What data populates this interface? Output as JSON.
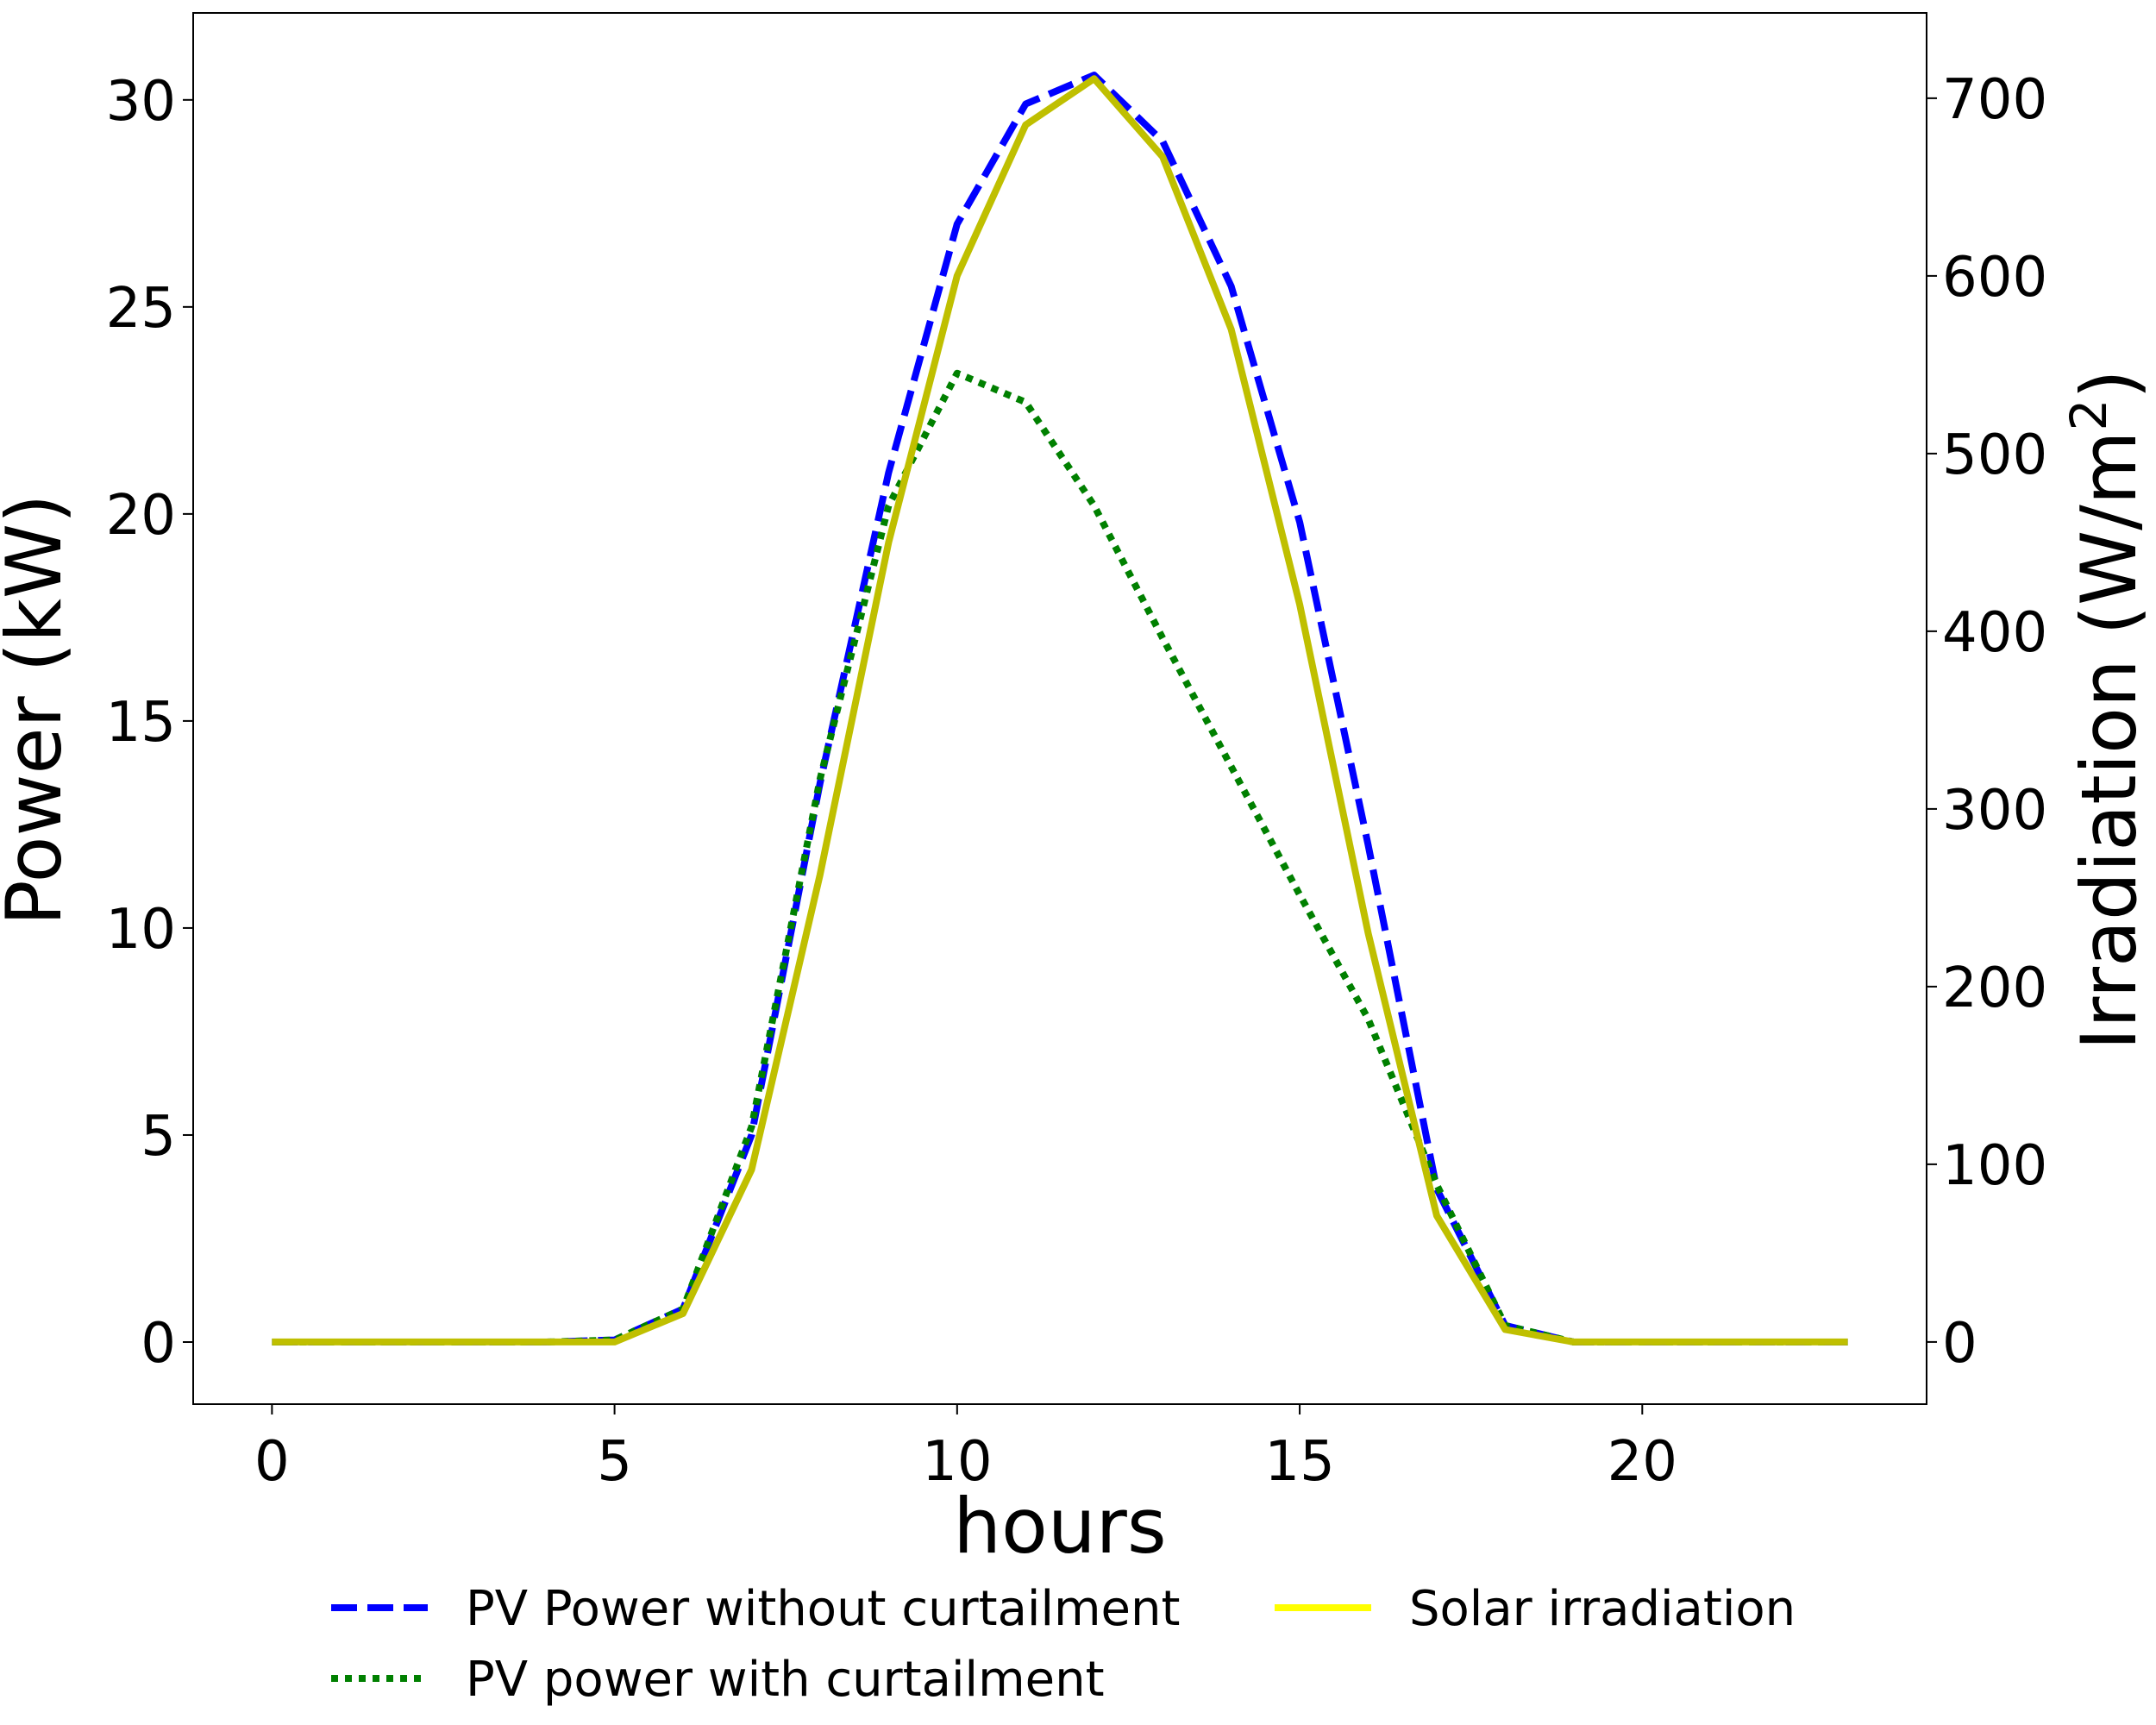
{
  "chart_data": {
    "type": "line",
    "xlabel": "hours",
    "ylabel": "Power (kW)",
    "y2label_main": "Irradiation (W/m",
    "y2label_sup": "2",
    "y2label_close": ")",
    "xlim": [
      -1.15,
      24.15
    ],
    "ylim": [
      -1.5,
      32.1
    ],
    "y2lim": [
      -35,
      748
    ],
    "xticks": [
      0,
      5,
      10,
      15,
      20
    ],
    "yticks": [
      0,
      5,
      10,
      15,
      20,
      25,
      30
    ],
    "y2ticks": [
      0,
      100,
      200,
      300,
      400,
      500,
      600,
      700
    ],
    "grid": false,
    "legend_position": "bottom (below the x-axis, two columns)",
    "x": [
      0,
      1,
      2,
      3,
      4,
      5,
      6,
      7,
      8,
      9,
      10,
      11,
      12,
      13,
      14,
      15,
      16,
      17,
      18,
      19,
      20,
      21,
      22,
      23
    ],
    "series": [
      {
        "name": "PV Power without curtailment",
        "axis": "left",
        "style": "dashed",
        "color": "#0000ff",
        "values": [
          0,
          0,
          0,
          0,
          0,
          0.05,
          0.8,
          5.0,
          13.5,
          21.0,
          27.0,
          29.9,
          30.6,
          29.0,
          25.5,
          19.8,
          12.0,
          3.7,
          0.4,
          0,
          0,
          0,
          0,
          0
        ]
      },
      {
        "name": "PV power with curtailment",
        "axis": "left",
        "style": "dotted",
        "color": "#008000",
        "values": [
          0,
          0,
          0,
          0,
          0,
          0.05,
          0.8,
          5.2,
          13.6,
          20.2,
          23.4,
          22.7,
          20.2,
          17.0,
          13.9,
          10.8,
          7.8,
          3.8,
          0.4,
          0,
          0,
          0,
          0,
          0
        ]
      },
      {
        "name": "Solar irradiation",
        "axis": "right",
        "style": "solid",
        "color": "#bfbf00",
        "legend_color": "#ffff00",
        "values": [
          0,
          0,
          0,
          0,
          0,
          0,
          16,
          97,
          263,
          450,
          600,
          685,
          711,
          667,
          570,
          415,
          230,
          71,
          7,
          0,
          0,
          0,
          0,
          0
        ]
      }
    ]
  }
}
